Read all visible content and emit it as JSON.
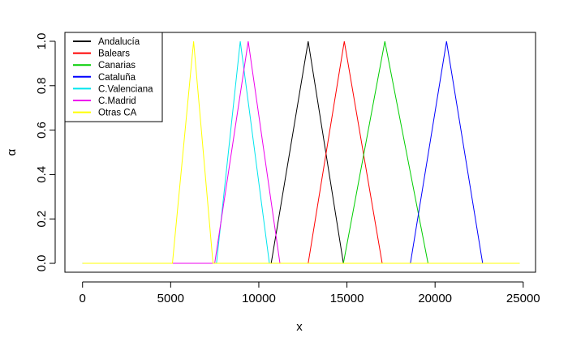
{
  "chart_data": {
    "type": "line",
    "xlabel": "x",
    "ylabel": "α",
    "xlim": [
      -1000,
      25700
    ],
    "ylim": [
      -0.04,
      1.04
    ],
    "x_ticks": [
      0,
      5000,
      10000,
      15000,
      20000,
      25000
    ],
    "x_tick_labels": [
      "0",
      "5000",
      "10000",
      "15000",
      "20000",
      "25000"
    ],
    "y_ticks": [
      0.0,
      0.2,
      0.4,
      0.6,
      0.8,
      1.0
    ],
    "y_tick_labels": [
      "0.0",
      "0.2",
      "0.4",
      "0.6",
      "0.8",
      "1.0"
    ],
    "grid": false,
    "legend_position": "top-left",
    "series": [
      {
        "name": "Andalucía",
        "color": "#000000",
        "x": [
          0,
          10700,
          12800,
          14800,
          24800
        ],
        "y": [
          0,
          0,
          1,
          0,
          0
        ]
      },
      {
        "name": "Balears",
        "color": "#ff0000",
        "x": [
          0,
          12800,
          14850,
          17000,
          24800
        ],
        "y": [
          0,
          0,
          1,
          0,
          0
        ]
      },
      {
        "name": "Canarias",
        "color": "#00cd00",
        "x": [
          0,
          14800,
          17150,
          19600,
          24800
        ],
        "y": [
          0,
          0,
          1,
          0,
          0
        ]
      },
      {
        "name": "Cataluña",
        "color": "#0000ff",
        "x": [
          0,
          18600,
          20650,
          22700,
          24800
        ],
        "y": [
          0,
          0,
          1,
          0,
          0
        ]
      },
      {
        "name": "C.Valenciana",
        "color": "#00e5ee",
        "x": [
          0,
          7600,
          8950,
          10600,
          24800
        ],
        "y": [
          0,
          0,
          1,
          0,
          0
        ]
      },
      {
        "name": "C.Madrid",
        "color": "#ee00ee",
        "x": [
          5000,
          7500,
          9400,
          11200
        ],
        "y": [
          0,
          0,
          1,
          0
        ]
      },
      {
        "name": "Otras CA",
        "color": "#ffff00",
        "x": [
          0,
          5100,
          6300,
          7400,
          24800
        ],
        "y": [
          0,
          0,
          1,
          0,
          0
        ]
      }
    ]
  }
}
